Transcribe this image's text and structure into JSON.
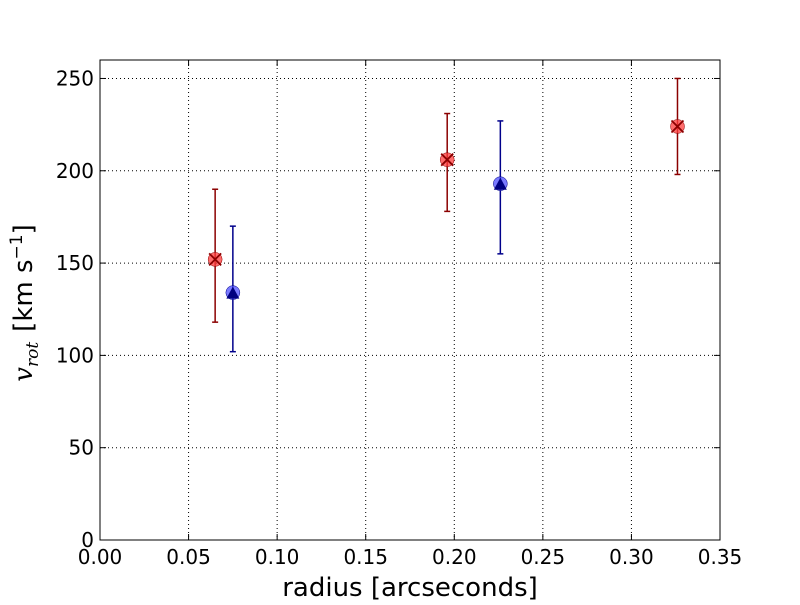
{
  "chart_data": {
    "type": "scatter",
    "title": "",
    "xlabel": "radius [arcseconds]",
    "ylabel_math": "v",
    "ylabel_sub": "rot",
    "ylabel_unit": "[km s",
    "ylabel_unit_exp": "−1",
    "ylabel_unit_close": "]",
    "xlim": [
      0.0,
      0.35
    ],
    "ylim": [
      0,
      260
    ],
    "xticks": [
      0.0,
      0.05,
      0.1,
      0.15,
      0.2,
      0.25,
      0.3,
      0.35
    ],
    "xtick_labels": [
      "0.00",
      "0.05",
      "0.10",
      "0.15",
      "0.20",
      "0.25",
      "0.30",
      "0.35"
    ],
    "yticks": [
      0,
      50,
      100,
      150,
      200,
      250
    ],
    "ytick_labels": [
      "0",
      "50",
      "100",
      "150",
      "200",
      "250"
    ],
    "grid": true,
    "series": [
      {
        "marker": "circle-x",
        "color": "#ff3b3b",
        "edge_color": "#8b0000",
        "error_color": "#8b0000",
        "points": [
          {
            "x": 0.065,
            "y": 152,
            "yerr_low": 118,
            "yerr_high": 190
          },
          {
            "x": 0.196,
            "y": 206,
            "yerr_low": 178,
            "yerr_high": 231
          },
          {
            "x": 0.326,
            "y": 224,
            "yerr_low": 198,
            "yerr_high": 250
          }
        ]
      },
      {
        "marker": "circle-triangle",
        "color": "#4d4dff",
        "edge_color": "#000080",
        "error_color": "#00008b",
        "points": [
          {
            "x": 0.075,
            "y": 134,
            "yerr_low": 102,
            "yerr_high": 170
          },
          {
            "x": 0.226,
            "y": 193,
            "yerr_low": 155,
            "yerr_high": 227
          }
        ]
      }
    ]
  }
}
